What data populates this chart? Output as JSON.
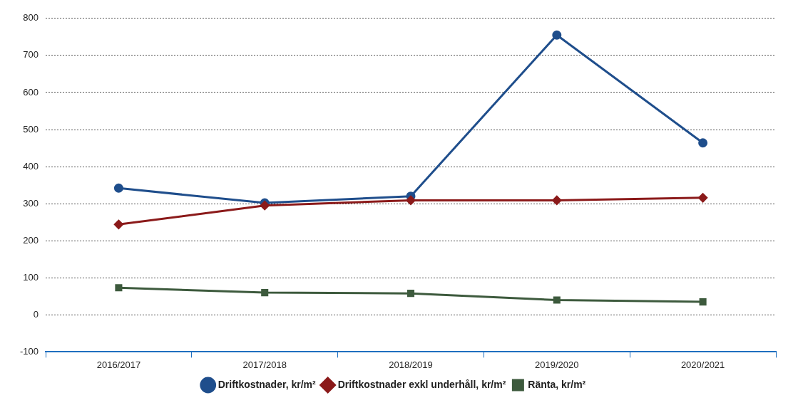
{
  "chart_data": {
    "type": "line",
    "categories": [
      "2016/2017",
      "2017/2018",
      "2018/2019",
      "2019/2020",
      "2020/2021"
    ],
    "series": [
      {
        "name": "Driftkostnader, kr/m²",
        "color": "#1f4e8c",
        "marker": "circle",
        "values": [
          342,
          302,
          320,
          755,
          464
        ]
      },
      {
        "name": "Driftkostnader exkl underhåll, kr/m²",
        "color": "#8b1a1a",
        "marker": "diamond",
        "values": [
          244,
          295,
          309,
          309,
          316
        ]
      },
      {
        "name": "Ränta, kr/m²",
        "color": "#3d5a3d",
        "marker": "square",
        "values": [
          73,
          60,
          58,
          40,
          35
        ]
      }
    ],
    "ylim": [
      -100,
      800
    ],
    "yticks": [
      -100,
      0,
      100,
      200,
      300,
      400,
      500,
      600,
      700,
      800
    ],
    "grid": "y",
    "legend": "bottom",
    "line_style": "solid"
  }
}
